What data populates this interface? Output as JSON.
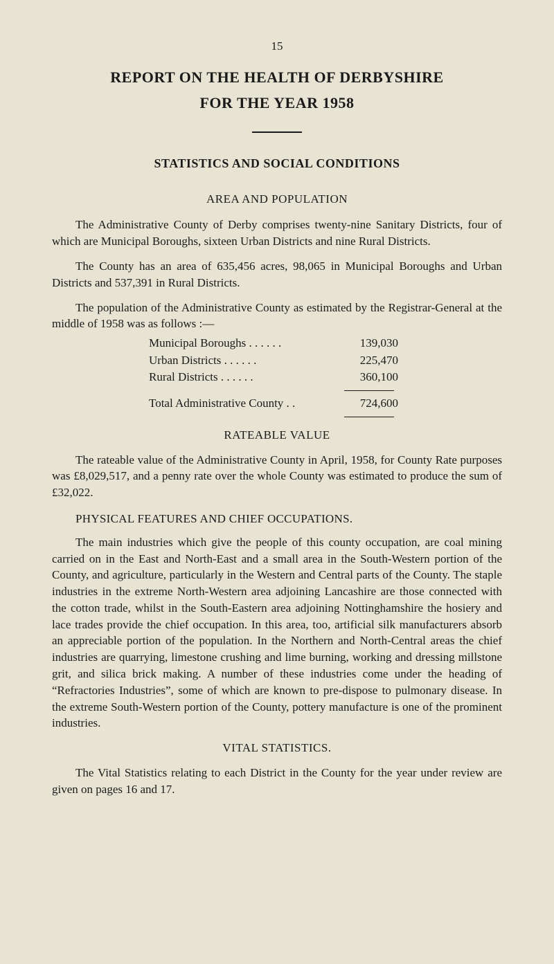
{
  "page_number": "15",
  "title_line1": "REPORT ON THE HEALTH OF DERBYSHIRE",
  "title_line2": "FOR THE YEAR 1958",
  "section1_heading": "STATISTICS AND SOCIAL CONDITIONS",
  "section1_sub1": "AREA AND POPULATION",
  "para1": "The Administrative County of Derby comprises twenty-nine Sanitary Districts, four of which are Municipal Boroughs, sixteen Urban Districts and nine Rural Districts.",
  "para2": "The County has an area of 635,456 acres, 98,065 in Municipal Boroughs and Urban Districts and 537,391 in Rural Districts.",
  "para3": "The population of the Administrative County as estimated by the Registrar-General at the middle of 1958 was as follows :—",
  "stats": {
    "rows": [
      {
        "label": "Municipal Boroughs   . .        . .       . .",
        "value": "139,030"
      },
      {
        "label": "Urban Districts            . .        . .       . .",
        "value": "225,470"
      },
      {
        "label": "Rural Districts              . .        . .       . .",
        "value": "360,100"
      }
    ],
    "total_label": "Total Administrative County         . .",
    "total_value": "724,600"
  },
  "section2_heading": "RATEABLE VALUE",
  "para4": "The rateable value of the Administrative County in April, 1958, for County Rate purposes was £8,029,517, and a penny rate over the whole County was estimated to produce the sum of £32,022.",
  "section3_heading": "PHYSICAL FEATURES AND CHIEF OCCUPATIONS.",
  "para5": "The main industries which give the people of this county occupation, are coal mining carried on in the East and North-East and a small area in the South-Western portion of the County, and agriculture, particularly in the Western and Central parts of the County. The staple industries in the extreme North-Western area adjoining Lancashire are those connected with the cotton trade, whilst in the South-Eastern area adjoining Nottinghamshire the hosiery and lace trades provide the chief occupation. In this area, too, artificial silk manufacturers absorb an appreciable portion of the population. In the Northern and North-Central areas the chief industries are quarrying, limestone crushing and lime burning, working and dressing millstone grit, and silica brick making. A number of these industries come under the heading of “Refractories Industries”, some of which are known to pre-dispose to pulmonary disease. In the extreme South-Western portion of the County, pottery manufacture is one of the prominent industries.",
  "section4_heading": "VITAL STATISTICS.",
  "para6": "The Vital Statistics relating to each District in the County for the year under review are given on pages 16 and 17.",
  "colors": {
    "background": "#e8e4d4",
    "text": "#1a1a1a",
    "divider": "#1a1a1a"
  },
  "typography": {
    "font_family": "Times New Roman",
    "body_fontsize": 17,
    "title_fontsize": 22,
    "heading_fontsize": 18
  }
}
